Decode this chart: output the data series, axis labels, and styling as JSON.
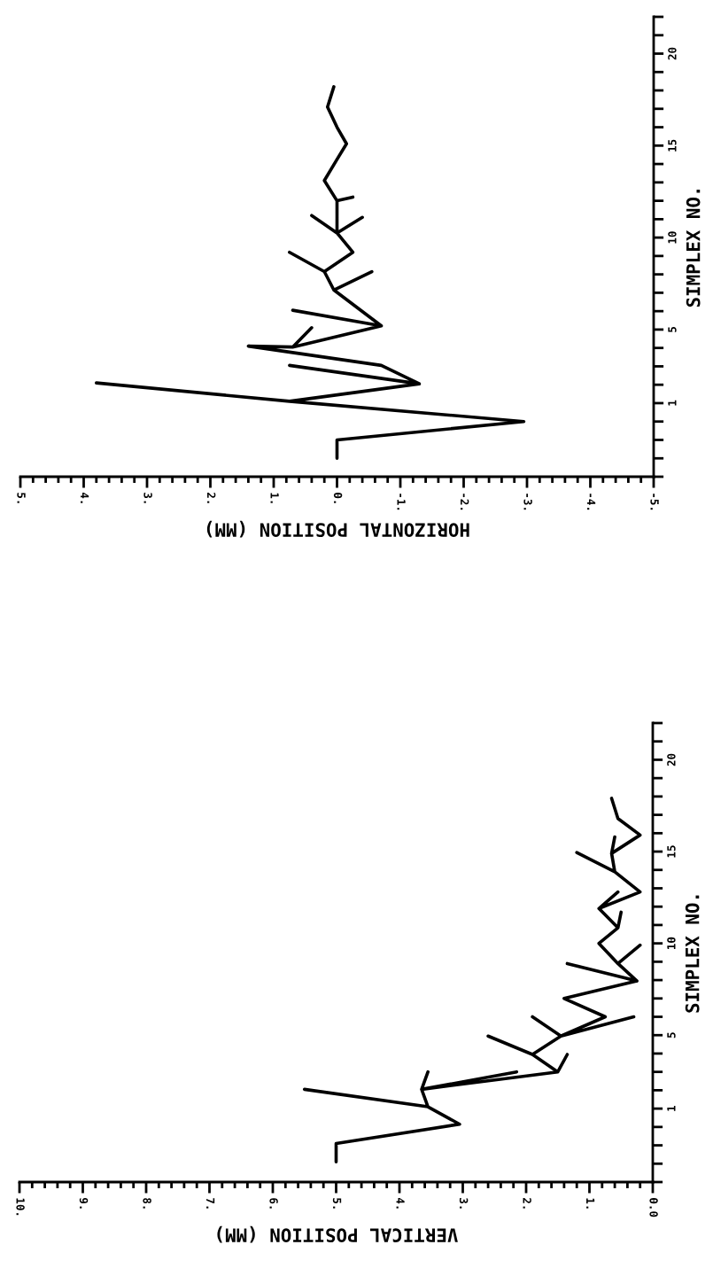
{
  "chart_data": [
    {
      "type": "line",
      "ylabel": "SIMPLEX NO.",
      "xlabel": "HORIZONTAL POSITION (MM)",
      "ylim": [
        -3,
        22
      ],
      "xlim": [
        5,
        -5
      ],
      "yticks": [
        {
          "value": -3,
          "label": null
        },
        {
          "value": -2,
          "label": null
        },
        {
          "value": -1,
          "label": null
        },
        {
          "value": 0,
          "label": null
        },
        1,
        {
          "value": 2,
          "label": null
        },
        {
          "value": 3,
          "label": null
        },
        {
          "value": 4,
          "label": null
        },
        5,
        {
          "value": 6,
          "label": null
        },
        {
          "value": 7,
          "label": null
        },
        {
          "value": 8,
          "label": null
        },
        {
          "value": 9,
          "label": null
        },
        10,
        {
          "value": 11,
          "label": null
        },
        {
          "value": 12,
          "label": null
        },
        {
          "value": 13,
          "label": null
        },
        {
          "value": 14,
          "label": null
        },
        15,
        {
          "value": 16,
          "label": null
        },
        {
          "value": 17,
          "label": null
        },
        {
          "value": 18,
          "label": null
        },
        {
          "value": 19,
          "label": null
        },
        20,
        {
          "value": 21,
          "label": null
        },
        {
          "value": 22,
          "label": null
        }
      ],
      "xticks": [
        {
          "value": 5,
          "label": "5."
        },
        {
          "value": 4,
          "label": "4."
        },
        {
          "value": 3,
          "label": "3."
        },
        {
          "value": 2,
          "label": "2."
        },
        {
          "value": 1,
          "label": "1."
        },
        {
          "value": 0,
          "label": "0."
        },
        {
          "value": -1,
          "label": "-1."
        },
        {
          "value": -2,
          "label": "-2."
        },
        {
          "value": -3,
          "label": "-3."
        },
        {
          "value": -4,
          "label": "-4."
        },
        {
          "value": -5,
          "label": "-5."
        },
        {
          "value": 4.8,
          "label": null
        },
        {
          "value": 4.6,
          "label": null
        },
        {
          "value": 4.4,
          "label": null
        },
        {
          "value": 4.2,
          "label": null
        },
        {
          "value": 3.8,
          "label": null
        },
        {
          "value": 3.6,
          "label": null
        },
        {
          "value": 3.4,
          "label": null
        },
        {
          "value": 3.2,
          "label": null
        },
        {
          "value": 2.8,
          "label": null
        },
        {
          "value": 2.6,
          "label": null
        },
        {
          "value": 2.4,
          "label": null
        },
        {
          "value": 2.2,
          "label": null
        },
        {
          "value": 1.8,
          "label": null
        },
        {
          "value": 1.6,
          "label": null
        },
        {
          "value": 1.4,
          "label": null
        },
        {
          "value": 1.2,
          "label": null
        },
        {
          "value": 0.8,
          "label": null
        },
        {
          "value": 0.6,
          "label": null
        },
        {
          "value": 0.4,
          "label": null
        },
        {
          "value": 0.2,
          "label": null
        },
        {
          "value": -0.2,
          "label": null
        },
        {
          "value": -0.4,
          "label": null
        },
        {
          "value": -0.6,
          "label": null
        },
        {
          "value": -0.8,
          "label": null
        },
        {
          "value": -1.2,
          "label": null
        },
        {
          "value": -1.4,
          "label": null
        },
        {
          "value": -1.6,
          "label": null
        },
        {
          "value": -1.8,
          "label": null
        },
        {
          "value": -2.2,
          "label": null
        },
        {
          "value": -2.4,
          "label": null
        },
        {
          "value": -2.6,
          "label": null
        },
        {
          "value": -2.8,
          "label": null
        },
        {
          "value": -3.2,
          "label": null
        },
        {
          "value": -3.4,
          "label": null
        },
        {
          "value": -3.6,
          "label": null
        },
        {
          "value": -3.8,
          "label": null
        },
        {
          "value": -4.2,
          "label": null
        },
        {
          "value": -4.4,
          "label": null
        },
        {
          "value": -4.6,
          "label": null
        },
        {
          "value": -4.8,
          "label": null
        }
      ],
      "series": [
        {
          "color": "#000000",
          "values": [
            -2.0,
            -1.0,
            0.0,
            1.1,
            2.1,
            1.1,
            2.05,
            3.05,
            2.05,
            3.05,
            4.1,
            4.05,
            5.1,
            4.05,
            5.2,
            6.05,
            5.2,
            7.15,
            8.15,
            7.15,
            8.15,
            9.2,
            8.15,
            9.2,
            10.25,
            11.1,
            10.25,
            11.2,
            10.25,
            12.0,
            12.2,
            12.0,
            13.1,
            14.25,
            15.1,
            16.0,
            17.1,
            18.2
          ],
          "x": [
            0.0,
            0.0,
            -2.95,
            0.75,
            3.8,
            0.75,
            -1.3,
            0.75,
            -1.3,
            -0.7,
            1.4,
            0.7,
            0.4,
            0.7,
            -0.7,
            0.7,
            -0.7,
            0.05,
            -0.55,
            0.05,
            0.2,
            0.75,
            0.2,
            -0.25,
            0.0,
            -0.4,
            0.0,
            0.4,
            0.0,
            0.0,
            -0.25,
            0.0,
            0.2,
            0.0,
            -0.15,
            0.0,
            0.15,
            0.05
          ]
        }
      ]
    },
    {
      "type": "line",
      "ylabel": "SIMPLEX NO.",
      "xlabel": "VERTICAL POSITION (MM)",
      "ylim": [
        -3,
        22
      ],
      "xlim": [
        10,
        0
      ],
      "yticks": [
        {
          "value": -3,
          "label": null
        },
        {
          "value": -2,
          "label": null
        },
        {
          "value": -1,
          "label": null
        },
        {
          "value": 0,
          "label": null
        },
        1,
        {
          "value": 2,
          "label": null
        },
        {
          "value": 3,
          "label": null
        },
        {
          "value": 4,
          "label": null
        },
        5,
        {
          "value": 6,
          "label": null
        },
        {
          "value": 7,
          "label": null
        },
        {
          "value": 8,
          "label": null
        },
        {
          "value": 9,
          "label": null
        },
        10,
        {
          "value": 11,
          "label": null
        },
        {
          "value": 12,
          "label": null
        },
        {
          "value": 13,
          "label": null
        },
        {
          "value": 14,
          "label": null
        },
        15,
        {
          "value": 16,
          "label": null
        },
        {
          "value": 17,
          "label": null
        },
        {
          "value": 18,
          "label": null
        },
        {
          "value": 19,
          "label": null
        },
        20,
        {
          "value": 21,
          "label": null
        },
        {
          "value": 22,
          "label": null
        }
      ],
      "xticks": [
        {
          "value": 10,
          "label": "10."
        },
        {
          "value": 9,
          "label": "9."
        },
        {
          "value": 8,
          "label": "8."
        },
        {
          "value": 7,
          "label": "7."
        },
        {
          "value": 6,
          "label": "6."
        },
        {
          "value": 5,
          "label": "5."
        },
        {
          "value": 4,
          "label": "4."
        },
        {
          "value": 3,
          "label": "3."
        },
        {
          "value": 2,
          "label": "2."
        },
        {
          "value": 1,
          "label": "1."
        },
        {
          "value": 0,
          "label": "0.0"
        },
        {
          "value": 9.8,
          "label": null
        },
        {
          "value": 9.6,
          "label": null
        },
        {
          "value": 9.4,
          "label": null
        },
        {
          "value": 9.2,
          "label": null
        },
        {
          "value": 8.8,
          "label": null
        },
        {
          "value": 8.6,
          "label": null
        },
        {
          "value": 8.4,
          "label": null
        },
        {
          "value": 8.2,
          "label": null
        },
        {
          "value": 7.8,
          "label": null
        },
        {
          "value": 7.6,
          "label": null
        },
        {
          "value": 7.4,
          "label": null
        },
        {
          "value": 7.2,
          "label": null
        },
        {
          "value": 6.8,
          "label": null
        },
        {
          "value": 6.6,
          "label": null
        },
        {
          "value": 6.4,
          "label": null
        },
        {
          "value": 6.2,
          "label": null
        },
        {
          "value": 5.8,
          "label": null
        },
        {
          "value": 5.6,
          "label": null
        },
        {
          "value": 5.4,
          "label": null
        },
        {
          "value": 5.2,
          "label": null
        },
        {
          "value": 4.8,
          "label": null
        },
        {
          "value": 4.6,
          "label": null
        },
        {
          "value": 4.4,
          "label": null
        },
        {
          "value": 4.2,
          "label": null
        },
        {
          "value": 3.8,
          "label": null
        },
        {
          "value": 3.6,
          "label": null
        },
        {
          "value": 3.4,
          "label": null
        },
        {
          "value": 3.2,
          "label": null
        },
        {
          "value": 2.8,
          "label": null
        },
        {
          "value": 2.6,
          "label": null
        },
        {
          "value": 2.4,
          "label": null
        },
        {
          "value": 2.2,
          "label": null
        },
        {
          "value": 1.8,
          "label": null
        },
        {
          "value": 1.6,
          "label": null
        },
        {
          "value": 1.4,
          "label": null
        },
        {
          "value": 1.2,
          "label": null
        },
        {
          "value": 0.8,
          "label": null
        },
        {
          "value": 0.6,
          "label": null
        },
        {
          "value": 0.4,
          "label": null
        },
        {
          "value": 0.2,
          "label": null
        }
      ],
      "series": [
        {
          "color": "#000000",
          "values": [
            -1.9,
            -0.9,
            0.15,
            1.1,
            2.05,
            1.1,
            2.05,
            3.0,
            2.05,
            3.0,
            2.05,
            3.0,
            3.95,
            3.0,
            3.95,
            4.95,
            3.95,
            4.95,
            6.0,
            4.95,
            6.0,
            4.95,
            6.0,
            7.0,
            7.95,
            8.9,
            7.95,
            8.9,
            9.9,
            8.9,
            10.0,
            10.85,
            11.7,
            10.85,
            11.9,
            12.8,
            11.9,
            12.8,
            13.9,
            14.95,
            13.9,
            14.9,
            15.8,
            14.9,
            15.9,
            16.8,
            17.9
          ],
          "x": [
            5.0,
            5.0,
            3.05,
            3.55,
            5.5,
            3.55,
            3.65,
            3.55,
            3.65,
            2.15,
            3.65,
            1.5,
            1.35,
            1.5,
            1.9,
            2.6,
            1.9,
            1.45,
            1.9,
            1.45,
            0.3,
            1.45,
            0.75,
            1.4,
            0.25,
            1.35,
            0.25,
            0.55,
            0.2,
            0.55,
            0.85,
            0.55,
            0.5,
            0.55,
            0.85,
            0.55,
            0.85,
            0.2,
            0.6,
            1.2,
            0.6,
            0.65,
            0.6,
            0.65,
            0.2,
            0.55,
            0.65
          ]
        }
      ]
    }
  ]
}
